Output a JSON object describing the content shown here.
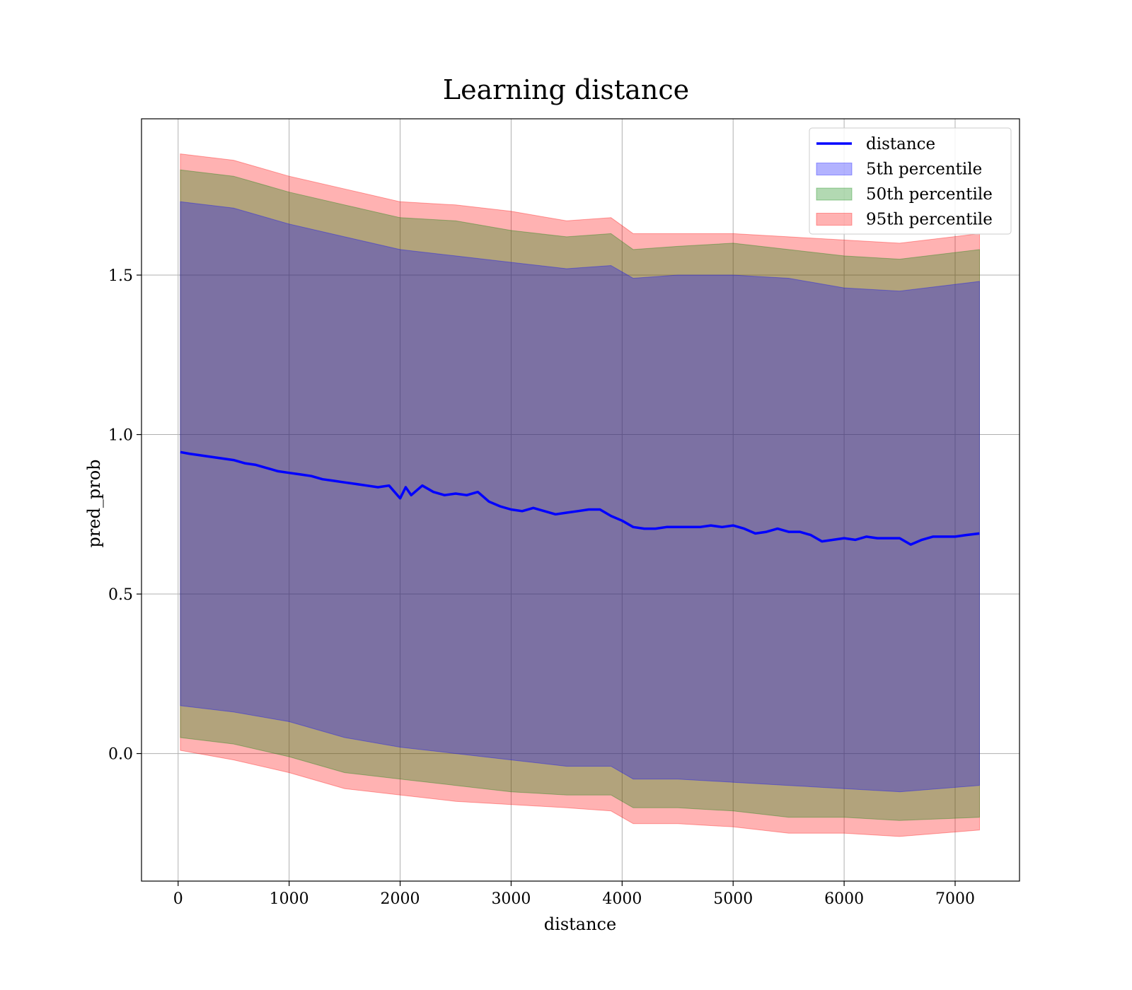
{
  "chart_data": {
    "type": "area",
    "title": "Learning distance",
    "xlabel": "distance",
    "ylabel": "pred_prob",
    "xlim": [
      -330,
      7580
    ],
    "ylim": [
      -0.4,
      1.99
    ],
    "xticks": [
      0,
      1000,
      2000,
      3000,
      4000,
      5000,
      6000,
      7000
    ],
    "yticks": [
      0.0,
      0.5,
      1.0,
      1.5
    ],
    "xtick_labels": [
      "0",
      "1000",
      "2000",
      "3000",
      "4000",
      "5000",
      "6000",
      "7000"
    ],
    "ytick_labels": [
      "0.0",
      "0.5",
      "1.0",
      "1.5"
    ],
    "grid": true,
    "legend_position": "top-right",
    "legend": [
      {
        "label": "distance",
        "kind": "line",
        "color": "#0000ff"
      },
      {
        "label": "5th percentile",
        "kind": "patch",
        "color": "#0000ff"
      },
      {
        "label": "50th percentile",
        "kind": "patch",
        "color": "#008000"
      },
      {
        "label": "95th percentile",
        "kind": "patch",
        "color": "#ff0000"
      }
    ],
    "line_series": {
      "name": "distance",
      "color": "#0000ff",
      "x": [
        20,
        100,
        200,
        300,
        400,
        500,
        600,
        700,
        800,
        900,
        1000,
        1100,
        1200,
        1300,
        1400,
        1500,
        1600,
        1700,
        1800,
        1900,
        1950,
        2000,
        2050,
        2100,
        2200,
        2300,
        2400,
        2500,
        2600,
        2700,
        2800,
        2900,
        3000,
        3100,
        3200,
        3300,
        3400,
        3500,
        3600,
        3700,
        3800,
        3900,
        4000,
        4100,
        4200,
        4300,
        4400,
        4500,
        4600,
        4700,
        4800,
        4900,
        5000,
        5100,
        5200,
        5300,
        5400,
        5500,
        5600,
        5700,
        5800,
        5900,
        6000,
        6100,
        6200,
        6300,
        6400,
        6500,
        6600,
        6700,
        6800,
        6900,
        7000,
        7100,
        7220
      ],
      "y": [
        0.945,
        0.94,
        0.935,
        0.93,
        0.925,
        0.92,
        0.91,
        0.905,
        0.895,
        0.885,
        0.88,
        0.875,
        0.87,
        0.86,
        0.855,
        0.85,
        0.845,
        0.84,
        0.835,
        0.84,
        0.82,
        0.8,
        0.835,
        0.81,
        0.84,
        0.82,
        0.81,
        0.815,
        0.81,
        0.82,
        0.79,
        0.775,
        0.765,
        0.76,
        0.77,
        0.76,
        0.75,
        0.755,
        0.76,
        0.765,
        0.765,
        0.745,
        0.73,
        0.71,
        0.705,
        0.705,
        0.71,
        0.71,
        0.71,
        0.71,
        0.715,
        0.71,
        0.715,
        0.705,
        0.69,
        0.695,
        0.705,
        0.695,
        0.695,
        0.685,
        0.665,
        0.67,
        0.675,
        0.67,
        0.68,
        0.675,
        0.675,
        0.675,
        0.655,
        0.67,
        0.68,
        0.68,
        0.68,
        0.685,
        0.69
      ]
    },
    "bands": [
      {
        "name": "95th percentile",
        "color": "#ff0000",
        "x": [
          20,
          500,
          1000,
          1500,
          2000,
          2500,
          3000,
          3500,
          3900,
          4100,
          4500,
          5000,
          5500,
          6000,
          6500,
          7220
        ],
        "upper": [
          1.88,
          1.86,
          1.81,
          1.77,
          1.73,
          1.72,
          1.7,
          1.67,
          1.68,
          1.63,
          1.63,
          1.63,
          1.62,
          1.61,
          1.6,
          1.63
        ],
        "lower": [
          0.01,
          -0.02,
          -0.06,
          -0.11,
          -0.13,
          -0.15,
          -0.16,
          -0.17,
          -0.18,
          -0.22,
          -0.22,
          -0.23,
          -0.25,
          -0.25,
          -0.26,
          -0.24
        ]
      },
      {
        "name": "50th percentile",
        "color": "#008000",
        "x": [
          20,
          500,
          1000,
          1500,
          2000,
          2500,
          3000,
          3500,
          3900,
          4100,
          4500,
          5000,
          5500,
          6000,
          6500,
          7220
        ],
        "upper": [
          1.83,
          1.81,
          1.76,
          1.72,
          1.68,
          1.67,
          1.64,
          1.62,
          1.63,
          1.58,
          1.59,
          1.6,
          1.58,
          1.56,
          1.55,
          1.58
        ],
        "lower": [
          0.05,
          0.03,
          -0.01,
          -0.06,
          -0.08,
          -0.1,
          -0.12,
          -0.13,
          -0.13,
          -0.17,
          -0.17,
          -0.18,
          -0.2,
          -0.2,
          -0.21,
          -0.2
        ]
      },
      {
        "name": "5th percentile",
        "color": "#0000ff",
        "x": [
          20,
          500,
          1000,
          1500,
          2000,
          2500,
          3000,
          3500,
          3900,
          4100,
          4500,
          5000,
          5500,
          6000,
          6500,
          7220
        ],
        "upper": [
          1.73,
          1.71,
          1.66,
          1.62,
          1.58,
          1.56,
          1.54,
          1.52,
          1.53,
          1.49,
          1.5,
          1.5,
          1.49,
          1.46,
          1.45,
          1.48
        ],
        "lower": [
          0.15,
          0.13,
          0.1,
          0.05,
          0.02,
          0.0,
          -0.02,
          -0.04,
          -0.04,
          -0.08,
          -0.08,
          -0.09,
          -0.1,
          -0.11,
          -0.12,
          -0.1
        ]
      }
    ]
  }
}
